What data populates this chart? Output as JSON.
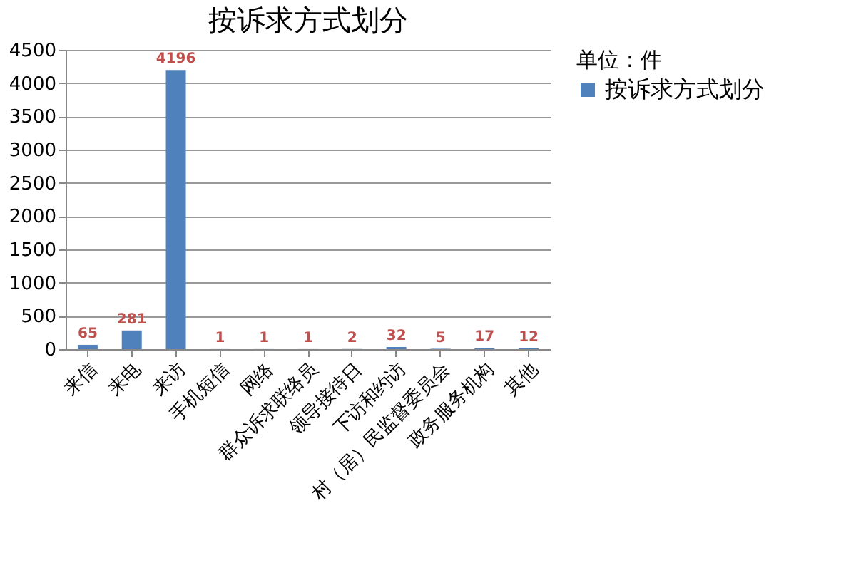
{
  "chart_data": {
    "type": "bar",
    "title": "按诉求方式划分",
    "categories": [
      "来信",
      "来电",
      "来访",
      "手机短信",
      "网络",
      "群众诉求联络员",
      "领导接待日",
      "下访和约访",
      "村（居）民监督委员会",
      "政务服务机构",
      "其他"
    ],
    "series": [
      {
        "name": "按诉求方式划分",
        "color": "#4f81bd",
        "values": [
          65,
          281,
          4196,
          1,
          1,
          1,
          2,
          32,
          5,
          17,
          12
        ]
      }
    ],
    "legend_title": "单位：件",
    "ylim": [
      0,
      4500
    ],
    "yticks": [
      0,
      500,
      1000,
      1500,
      2000,
      2500,
      3000,
      3500,
      4000,
      4500
    ],
    "grid": "y",
    "legend": "right",
    "data_labels": true
  }
}
